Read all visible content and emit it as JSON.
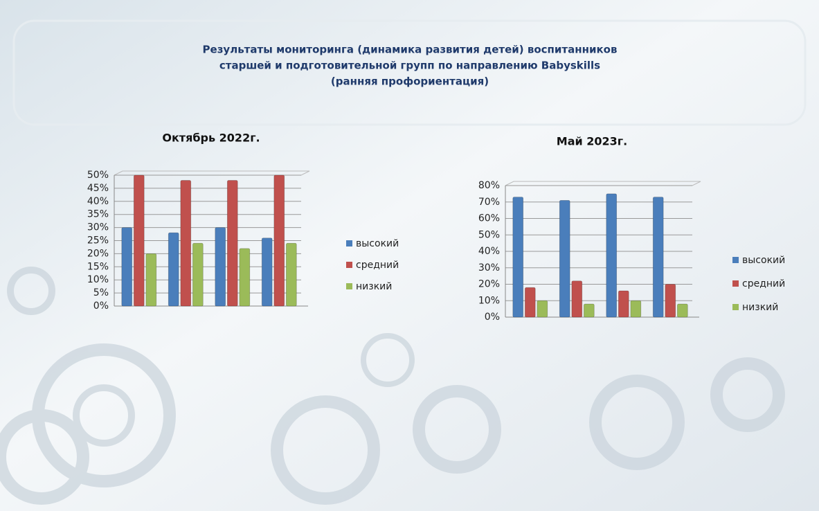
{
  "header": {
    "title_lines": [
      "Результаты мониторинга (динамика развития детей) воспитанников",
      "старшей и подготовительной групп по направлению Babyskills",
      "(ранняя профориентация)"
    ]
  },
  "chart_data": [
    {
      "type": "bar",
      "title": "Октябрь 2022г.",
      "categories": [
        null,
        null,
        null,
        null
      ],
      "series": [
        {
          "name": "высокий",
          "color": "#4a7ebb",
          "values": [
            30,
            28,
            30,
            26
          ]
        },
        {
          "name": "средний",
          "color": "#c0504d",
          "values": [
            50,
            48,
            48,
            50
          ]
        },
        {
          "name": "низкий",
          "color": "#9bbb59",
          "values": [
            20,
            24,
            22,
            24
          ]
        }
      ],
      "ylim": [
        0,
        50
      ],
      "yticks": [
        {
          "value": 0,
          "label": "0%"
        },
        {
          "value": 5,
          "label": "5%"
        },
        {
          "value": 10,
          "label": "10%"
        },
        {
          "value": 15,
          "label": "15%"
        },
        {
          "value": 20,
          "label": "20%"
        },
        {
          "value": 25,
          "label": "25%"
        },
        {
          "value": 30,
          "label": "30%"
        },
        {
          "value": 35,
          "label": "35%"
        },
        {
          "value": 40,
          "label": "40%"
        },
        {
          "value": 45,
          "label": "45%"
        },
        {
          "value": 50,
          "label": "50%"
        }
      ],
      "grid": true,
      "legend": "right"
    },
    {
      "type": "bar",
      "title": "Май 2023г.",
      "categories": [
        null,
        null,
        null,
        null
      ],
      "series": [
        {
          "name": "высокий",
          "color": "#4a7ebb",
          "values": [
            73,
            71,
            75,
            73
          ]
        },
        {
          "name": "средний",
          "color": "#c0504d",
          "values": [
            18,
            22,
            16,
            20
          ]
        },
        {
          "name": "низкий",
          "color": "#9bbb59",
          "values": [
            10,
            8,
            10,
            8
          ]
        }
      ],
      "ylim": [
        0,
        80
      ],
      "yticks": [
        {
          "value": 0,
          "label": "0%"
        },
        {
          "value": 10,
          "label": "10%"
        },
        {
          "value": 20,
          "label": "20%"
        },
        {
          "value": 30,
          "label": "30%"
        },
        {
          "value": 40,
          "label": "40%"
        },
        {
          "value": 50,
          "label": "50%"
        },
        {
          "value": 60,
          "label": "60%"
        },
        {
          "value": 70,
          "label": "70%"
        },
        {
          "value": 80,
          "label": "80%"
        }
      ],
      "grid": true,
      "legend": "right"
    }
  ]
}
